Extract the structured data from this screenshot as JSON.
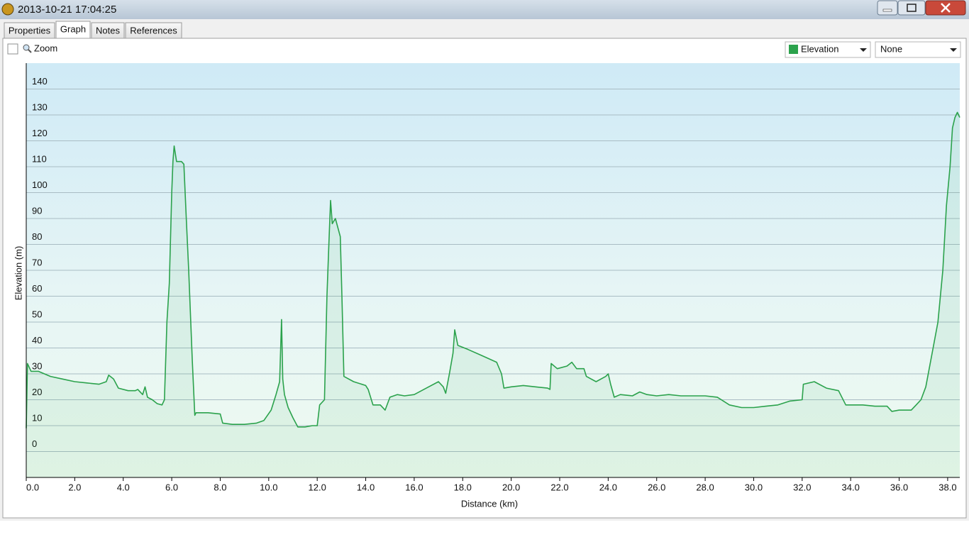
{
  "window": {
    "title": "2013-10-21 17:04:25",
    "tabs": [
      "Properties",
      "Graph",
      "Notes",
      "References"
    ],
    "zoom_label": "Zoom",
    "second_series_option": "None"
  },
  "chart_data": {
    "type": "line",
    "xlabel": "Distance (km)",
    "ylabel": "Elevation (m)",
    "x": [
      0,
      0.05,
      0.2,
      0.5,
      1.0,
      1.5,
      2.0,
      2.5,
      3.0,
      3.3,
      3.4,
      3.6,
      3.8,
      4.2,
      4.5,
      4.6,
      4.8,
      4.9,
      5.0,
      5.2,
      5.4,
      5.6,
      5.7,
      5.8,
      5.9,
      6.0,
      6.05,
      6.1,
      6.2,
      6.4,
      6.5,
      6.6,
      6.7,
      6.85,
      6.95,
      7.0,
      7.5,
      8.0,
      8.1,
      8.5,
      9.0,
      9.5,
      9.8,
      10.1,
      10.3,
      10.45,
      10.53,
      10.58,
      10.65,
      10.8,
      11.0,
      11.2,
      11.5,
      11.8,
      12.0,
      12.1,
      12.3,
      12.4,
      12.48,
      12.55,
      12.62,
      12.75,
      12.95,
      13.02,
      13.1,
      13.5,
      14.0,
      14.1,
      14.3,
      14.6,
      14.8,
      15.0,
      15.3,
      15.6,
      16.0,
      16.5,
      17.0,
      17.2,
      17.3,
      17.45,
      17.6,
      17.67,
      17.8,
      18.2,
      18.8,
      19.4,
      19.6,
      19.7,
      20.0,
      20.5,
      21.0,
      21.5,
      21.6,
      21.65,
      21.9,
      22.3,
      22.5,
      22.7,
      23.0,
      23.1,
      23.5,
      23.9,
      24.0,
      24.1,
      24.25,
      24.5,
      25.0,
      25.3,
      25.6,
      26.0,
      26.5,
      27.0,
      27.5,
      28.0,
      28.5,
      29.0,
      29.5,
      30.0,
      30.5,
      31.0,
      31.5,
      32.0,
      32.05,
      32.5,
      33.0,
      33.5,
      33.8,
      34.5,
      35.0,
      35.5,
      35.7,
      36.0,
      36.5,
      36.7,
      36.9,
      37.1,
      37.4,
      37.6,
      37.8,
      37.95,
      38.1,
      38.2,
      38.3,
      38.4,
      38.5
    ],
    "series": [
      {
        "name": "Elevation",
        "color": "#2ba24c",
        "values": [
          9,
          34,
          31,
          31,
          29,
          28,
          27,
          26.5,
          26,
          27,
          29.5,
          28,
          24.5,
          23.5,
          23.5,
          24,
          22,
          25,
          21,
          20,
          18.5,
          18,
          20,
          50,
          65,
          100,
          112,
          118,
          112,
          112,
          111,
          90,
          70,
          35,
          14,
          15,
          15,
          14.5,
          11,
          10.5,
          10.5,
          11,
          12,
          16,
          22,
          27,
          51,
          28,
          22,
          17,
          13,
          9.5,
          9.5,
          10,
          10,
          18,
          20,
          60,
          80,
          97,
          88,
          90,
          83,
          60,
          29,
          27,
          25.5,
          24,
          18,
          18,
          16,
          21,
          22,
          21.5,
          22,
          24.5,
          27,
          25,
          22.5,
          30,
          38,
          47,
          41,
          39.5,
          37,
          34.5,
          30,
          24.5,
          25,
          25.5,
          25,
          24.5,
          24,
          34,
          32,
          33,
          34.5,
          32,
          32,
          29,
          27,
          29,
          30,
          26,
          21,
          22,
          21.5,
          23,
          22,
          21.5,
          22,
          21.5,
          21.5,
          21.5,
          21,
          18,
          17,
          17,
          17.5,
          18,
          19.5,
          20,
          26,
          27,
          24.5,
          23.5,
          18,
          18,
          17.5,
          17.5,
          15.5,
          16,
          16,
          18,
          20,
          25,
          40,
          50,
          70,
          95,
          110,
          125,
          129,
          131,
          129
        ]
      }
    ],
    "xlim": [
      0,
      38.5
    ],
    "ylim": [
      -10,
      150
    ],
    "xticks": [
      {
        "value": 0,
        "label": "0.0"
      },
      {
        "value": 2,
        "label": "2.0"
      },
      {
        "value": 4,
        "label": "4.0"
      },
      {
        "value": 6,
        "label": "6.0"
      },
      {
        "value": 8,
        "label": "8.0"
      },
      {
        "value": 10,
        "label": "10.0"
      },
      {
        "value": 12,
        "label": "12.0"
      },
      {
        "value": 14,
        "label": "14.0"
      },
      {
        "value": 16,
        "label": "16.0"
      },
      {
        "value": 18,
        "label": "18.0"
      },
      {
        "value": 20,
        "label": "20.0"
      },
      {
        "value": 22,
        "label": "22.0"
      },
      {
        "value": 24,
        "label": "24.0"
      },
      {
        "value": 26,
        "label": "26.0"
      },
      {
        "value": 28,
        "label": "28.0"
      },
      {
        "value": 30,
        "label": "30.0"
      },
      {
        "value": 32,
        "label": "32.0"
      },
      {
        "value": 34,
        "label": "34.0"
      },
      {
        "value": 36,
        "label": "36.0"
      },
      {
        "value": 38,
        "label": "38.0"
      }
    ],
    "yticks": [
      0,
      10,
      20,
      30,
      40,
      50,
      60,
      70,
      80,
      90,
      100,
      110,
      120,
      130,
      140
    ],
    "grid": true,
    "fill": true
  }
}
